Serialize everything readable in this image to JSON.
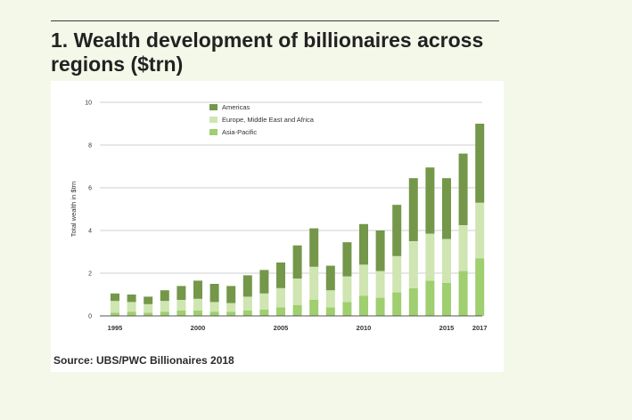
{
  "figure": {
    "title": "1. Wealth development of billionaires across regions ($trn)",
    "source": "Source: UBS/PWC Billionaires 2018"
  },
  "colors": {
    "americas": "#74974a",
    "emea": "#cfe5b2",
    "asia_pacific": "#9fcf6e",
    "grid": "#bfbfbf",
    "axis": "#555555",
    "text": "#333333"
  },
  "chart_data": {
    "type": "bar",
    "stacked": true,
    "title": "1. Wealth development of billionaires across regions ($trn)",
    "xlabel": "",
    "ylabel": "Total wealth in $trn",
    "ylim": [
      0,
      10
    ],
    "yticks": [
      0,
      2,
      4,
      6,
      8,
      10
    ],
    "grid": true,
    "legend_position": "top-center",
    "categories": [
      "1995",
      "1996",
      "1997",
      "1998",
      "1999",
      "2000",
      "2001",
      "2002",
      "2003",
      "2004",
      "2005",
      "2006",
      "2007",
      "2008",
      "2009",
      "2010",
      "2011",
      "2012",
      "2013",
      "2014",
      "2015",
      "2016",
      "2017"
    ],
    "xtick_labels": [
      "1995",
      "2000",
      "2005",
      "2010",
      "2015",
      "2017"
    ],
    "series": [
      {
        "name": "Asia-Pacific",
        "color_key": "asia_pacific",
        "values": [
          0.15,
          0.2,
          0.15,
          0.2,
          0.25,
          0.25,
          0.2,
          0.2,
          0.25,
          0.3,
          0.4,
          0.5,
          0.75,
          0.4,
          0.65,
          0.95,
          0.85,
          1.1,
          1.3,
          1.65,
          1.55,
          2.1,
          2.7
        ]
      },
      {
        "name": "Europe, Middle East and Africa",
        "color_key": "emea",
        "values": [
          0.55,
          0.45,
          0.4,
          0.5,
          0.5,
          0.55,
          0.45,
          0.4,
          0.65,
          0.75,
          0.9,
          1.25,
          1.55,
          0.8,
          1.2,
          1.45,
          1.25,
          1.7,
          2.2,
          2.2,
          2.05,
          2.15,
          2.6
        ]
      },
      {
        "name": "Americas",
        "color_key": "americas",
        "values": [
          0.35,
          0.35,
          0.35,
          0.5,
          0.65,
          0.85,
          0.85,
          0.8,
          1.0,
          1.1,
          1.2,
          1.55,
          1.8,
          1.15,
          1.6,
          1.9,
          1.9,
          2.4,
          2.95,
          3.1,
          2.85,
          3.35,
          3.7
        ]
      }
    ]
  }
}
